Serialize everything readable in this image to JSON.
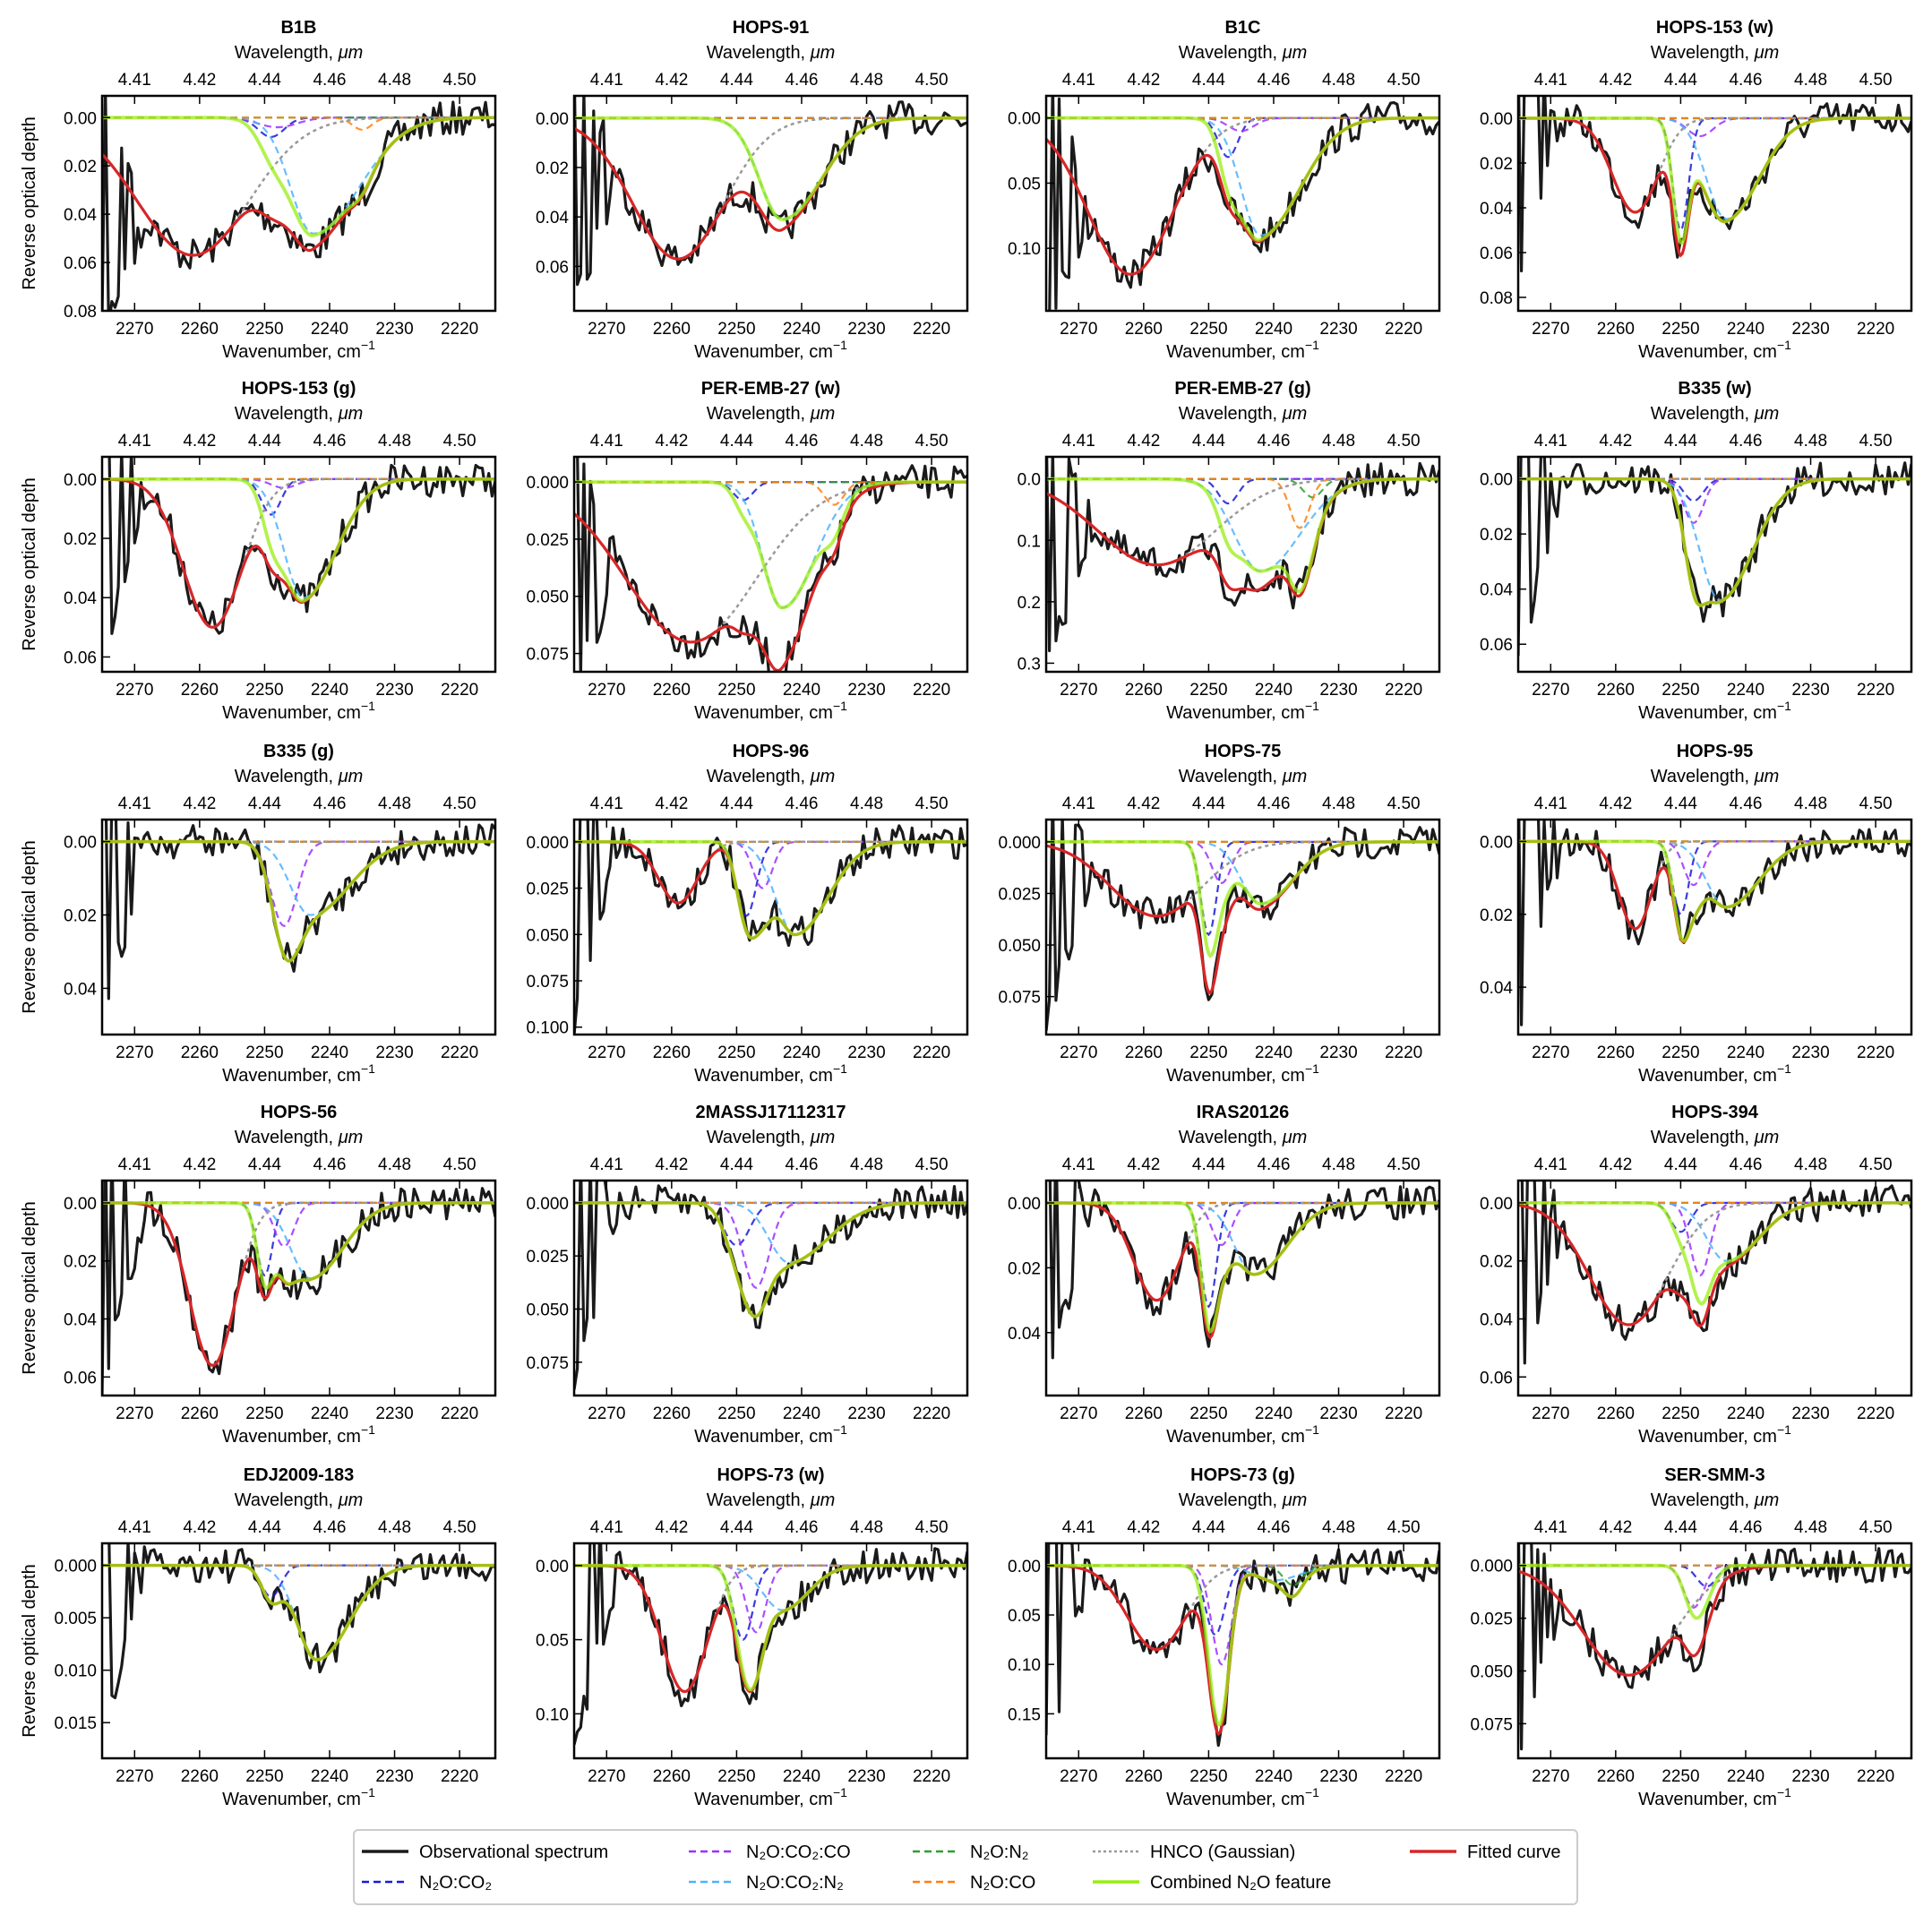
{
  "chart_data": {
    "type": "line",
    "grid": false,
    "xlim": [
      2275,
      2214.5
    ],
    "xticks": [
      "2270",
      "2260",
      "2250",
      "2240",
      "2230",
      "2220"
    ],
    "top_ticks": [
      "4.41",
      "4.42",
      "4.44",
      "4.46",
      "4.48",
      "4.50"
    ],
    "xlabel": "Wavenumber, cm",
    "xlabel_sup": "−1",
    "top_xlabel": "Wavelength, ",
    "top_xlabel_unit": "μm",
    "ylabel": "Reverse optical depth",
    "y_inverted": true,
    "colors": {
      "observed": "#1a1a1a",
      "n2o_co2": "#1a1ad6",
      "n2o_co2_co": "#9b30ff",
      "n2o_n2": "#2ca02c",
      "n2o_co2_n2": "#4db2ff",
      "n2o_co": "#ff7f0e",
      "hnco": "#999999",
      "combined": "#99ee11",
      "fitted": "#d62728"
    },
    "legend": {
      "placement": "bottom-center",
      "entries": [
        {
          "key": "observed",
          "label": "Observational spectrum",
          "style": "solid"
        },
        {
          "key": "n2o_co2_co",
          "label": "N₂O:CO₂:CO",
          "style": "dashed"
        },
        {
          "key": "n2o_n2",
          "label": "N₂O:N₂",
          "style": "dashed"
        },
        {
          "key": "hnco",
          "label": "HNCO (Gaussian)",
          "style": "dotted"
        },
        {
          "key": "fitted",
          "label": "Fitted curve",
          "style": "solid"
        },
        {
          "key": "n2o_co2",
          "label": "N₂O:CO₂",
          "style": "dashed"
        },
        {
          "key": "n2o_co2_n2",
          "label": "N₂O:CO₂:N₂",
          "style": "dashed"
        },
        {
          "key": "n2o_co",
          "label": "N₂O:CO",
          "style": "dashed"
        },
        {
          "key": "combined",
          "label": "Combined N₂O feature",
          "style": "solid"
        }
      ]
    },
    "panels": [
      {
        "title": "B1B",
        "ylim": [
          -0.009,
          0.08
        ],
        "yticks": [
          "0.00",
          "0.02",
          "0.04",
          "0.06",
          "0.08"
        ],
        "hnco": {
          "c": 2261,
          "d": 0.057,
          "s": 8.6
        },
        "components": {
          "n2o_co2": {
            "c": 2249,
            "d": 0.008,
            "s": 2
          },
          "n2o_co2_co": {
            "c": 2248,
            "d": 0.004,
            "s": 3
          },
          "n2o_co2_n2": {
            "c": 2242.5,
            "d": 0.048,
            "sh": 3.5,
            "sl": 7
          },
          "n2o_co": {
            "c": 2235,
            "d": 0.005,
            "s": 1.5
          }
        }
      },
      {
        "title": "HOPS-91",
        "ylim": [
          -0.009,
          0.078
        ],
        "yticks": [
          "0.00",
          "0.02",
          "0.04",
          "0.06"
        ],
        "hnco": {
          "c": 2259,
          "d": 0.057,
          "s": 7
        },
        "components": {
          "n2o_co2_n2": {
            "c": 2243,
            "d": 0.041,
            "sh": 3.5,
            "sl": 6
          }
        }
      },
      {
        "title": "B1C",
        "ylim": [
          -0.017,
          0.148
        ],
        "yticks": [
          "0.00",
          "0.05",
          "0.10"
        ],
        "hnco": {
          "c": 2262,
          "d": 0.12,
          "s": 6.5
        },
        "components": {
          "n2o_co2": {
            "c": 2247,
            "d": 0.03,
            "s": 1.5
          },
          "n2o_co2_co": {
            "c": 2245,
            "d": 0.01,
            "s": 2
          },
          "n2o_co2_n2": {
            "c": 2242,
            "d": 0.09,
            "sh": 3,
            "sl": 6
          }
        }
      },
      {
        "title": "HOPS-153 (w)",
        "ylim": [
          -0.01,
          0.086
        ],
        "yticks": [
          "0.00",
          "0.02",
          "0.04",
          "0.06",
          "0.08"
        ],
        "hnco": {
          "c": 2257,
          "d": 0.042,
          "s": 3.5
        },
        "components": {
          "n2o_co2": {
            "c": 2250,
            "d": 0.05,
            "s": 1.2
          },
          "n2o_co2_co": {
            "c": 2247,
            "d": 0.008,
            "s": 2
          },
          "n2o_co2_n2": {
            "c": 2243,
            "d": 0.045,
            "sh": 3,
            "sl": 5
          }
        }
      },
      {
        "title": "HOPS-153 (g)",
        "ylim": [
          -0.0075,
          0.065
        ],
        "yticks": [
          "0.00",
          "0.02",
          "0.04",
          "0.06"
        ],
        "hnco": {
          "c": 2258,
          "d": 0.05,
          "s": 4.5
        },
        "components": {
          "n2o_co2": {
            "c": 2249,
            "d": 0.012,
            "s": 1.5
          },
          "n2o_co2_co": {
            "c": 2247,
            "d": 0.003,
            "s": 2
          },
          "n2o_co2_n2": {
            "c": 2244,
            "d": 0.04,
            "sh": 3,
            "sl": 5
          }
        }
      },
      {
        "title": "PER-EMB-27 (w)",
        "ylim": [
          -0.011,
          0.083
        ],
        "yticks": [
          "0.000",
          "0.025",
          "0.050",
          "0.075"
        ],
        "hnco": {
          "c": 2257,
          "d": 0.07,
          "s": 10
        },
        "components": {
          "n2o_co2": {
            "c": 2249,
            "d": 0.008,
            "s": 1.5
          },
          "n2o_co2_n2": {
            "c": 2243,
            "d": 0.055,
            "sh": 3,
            "sl": 5
          },
          "n2o_co": {
            "c": 2235,
            "d": 0.01,
            "s": 1.5
          }
        }
      },
      {
        "title": "PER-EMB-27 (g)",
        "ylim": [
          -0.036,
          0.314
        ],
        "yticks": [
          "0.0",
          "0.1",
          "0.2",
          "0.3"
        ],
        "hnco": {
          "c": 2258,
          "d": 0.14,
          "s": 9
        },
        "components": {
          "n2o_co2": {
            "c": 2247,
            "d": 0.04,
            "s": 1.5
          },
          "n2o_n2": {
            "c": 2234,
            "d": 0.03,
            "s": 1.5
          },
          "n2o_co2_n2": {
            "c": 2242,
            "d": 0.15,
            "sh": 4,
            "sl": 6
          },
          "n2o_co": {
            "c": 2236,
            "d": 0.08,
            "s": 1.5
          }
        }
      },
      {
        "title": "B335 (w)",
        "ylim": [
          -0.008,
          0.07
        ],
        "yticks": [
          "0.00",
          "0.02",
          "0.04",
          "0.06"
        ],
        "hnco": {
          "c": 2258,
          "d": 0,
          "s": 4
        },
        "components": {
          "n2o_co2": {
            "c": 2248,
            "d": 0.008,
            "s": 1.5
          },
          "n2o_co2_co": {
            "c": 2248,
            "d": 0.016,
            "s": 1.5
          },
          "n2o_co2_n2": {
            "c": 2244,
            "d": 0.044,
            "sh": 3,
            "sl": 5
          }
        }
      },
      {
        "title": "B335 (g)",
        "ylim": [
          -0.006,
          0.0526
        ],
        "yticks": [
          "0.00",
          "0.02",
          "0.04"
        ],
        "hnco": {
          "c": 2258,
          "d": 0,
          "s": 4
        },
        "components": {
          "n2o_co2_co": {
            "c": 2247,
            "d": 0.023,
            "s": 2
          },
          "n2o_co2_n2": {
            "c": 2243,
            "d": 0.02,
            "sh": 3,
            "sl": 6
          }
        }
      },
      {
        "title": "HOPS-96",
        "ylim": [
          -0.012,
          0.104
        ],
        "yticks": [
          "0.000",
          "0.025",
          "0.050",
          "0.075",
          "0.100"
        ],
        "hnco": {
          "c": 2259,
          "d": 0.033,
          "s": 3
        },
        "components": {
          "n2o_co2": {
            "c": 2248.5,
            "d": 0.04,
            "s": 1.5
          },
          "n2o_co2_co": {
            "c": 2246,
            "d": 0.025,
            "s": 1.5
          },
          "n2o_co2_n2": {
            "c": 2241,
            "d": 0.05,
            "sh": 3,
            "sl": 5
          }
        }
      },
      {
        "title": "HOPS-75",
        "ylim": [
          -0.0108,
          0.0934
        ],
        "yticks": [
          "0.000",
          "0.025",
          "0.050",
          "0.075"
        ],
        "hnco": {
          "c": 2258,
          "d": 0.036,
          "s": 7
        },
        "components": {
          "n2o_co2": {
            "c": 2250,
            "d": 0.045,
            "s": 1.2
          },
          "n2o_co2_co": {
            "c": 2248,
            "d": 0.02,
            "s": 1.5
          },
          "n2o_co2_n2": {
            "c": 2242,
            "d": 0.03,
            "sh": 3,
            "sl": 5
          }
        }
      },
      {
        "title": "HOPS-95",
        "ylim": [
          -0.006,
          0.053
        ],
        "yticks": [
          "0.00",
          "0.02",
          "0.04"
        ],
        "hnco": {
          "c": 2257,
          "d": 0.024,
          "s": 2.5
        },
        "components": {
          "n2o_co2": {
            "c": 2250,
            "d": 0.02,
            "s": 1.2
          },
          "n2o_co2_co": {
            "c": 2248,
            "d": 0.012,
            "s": 1.5
          },
          "n2o_co2_n2": {
            "c": 2243,
            "d": 0.018,
            "sh": 3,
            "sl": 5
          }
        }
      },
      {
        "title": "HOPS-56",
        "ylim": [
          -0.0077,
          0.0664
        ],
        "yticks": [
          "0.00",
          "0.02",
          "0.04",
          "0.06"
        ],
        "hnco": {
          "c": 2258,
          "d": 0.056,
          "s": 3.5
        },
        "components": {
          "n2o_co2": {
            "c": 2250,
            "d": 0.025,
            "s": 1.2
          },
          "n2o_co2_co": {
            "c": 2247,
            "d": 0.015,
            "s": 1.5
          },
          "n2o_co2_n2": {
            "c": 2243,
            "d": 0.026,
            "sh": 3,
            "sl": 5
          }
        }
      },
      {
        "title": "2MASSJ17112317",
        "ylim": [
          -0.0105,
          0.0907
        ],
        "yticks": [
          "0.000",
          "0.025",
          "0.050",
          "0.075"
        ],
        "hnco": {
          "c": 2258,
          "d": 0,
          "s": 4
        },
        "components": {
          "n2o_co2": {
            "c": 2250,
            "d": 0.02,
            "s": 2
          },
          "n2o_co2_co": {
            "c": 2247,
            "d": 0.04,
            "s": 2
          },
          "n2o_co2_n2": {
            "c": 2242,
            "d": 0.028,
            "sh": 3,
            "sl": 6
          }
        }
      },
      {
        "title": "IRAS20126",
        "ylim": [
          -0.0069,
          0.0594
        ],
        "yticks": [
          "0.00",
          "0.02",
          "0.04"
        ],
        "hnco": {
          "c": 2258,
          "d": 0.03,
          "s": 3.5
        },
        "components": {
          "n2o_co2": {
            "c": 2250,
            "d": 0.032,
            "s": 1.2
          },
          "n2o_co2_co": {
            "c": 2248,
            "d": 0.013,
            "s": 1.5
          },
          "n2o_co2_n2": {
            "c": 2243,
            "d": 0.022,
            "sh": 3,
            "sl": 5
          }
        }
      },
      {
        "title": "HOPS-394",
        "ylim": [
          -0.0077,
          0.0664
        ],
        "yticks": [
          "0.00",
          "0.02",
          "0.04",
          "0.06"
        ],
        "hnco": {
          "c": 2258,
          "d": 0.042,
          "s": 6
        },
        "components": {
          "n2o_co2": {
            "c": 2250,
            "d": 0.01,
            "s": 1.5
          },
          "n2o_co2_co": {
            "c": 2247,
            "d": 0.025,
            "s": 1.5
          },
          "n2o_co2_n2": {
            "c": 2243,
            "d": 0.02,
            "sh": 3,
            "sl": 5
          }
        }
      },
      {
        "title": "EDJ2009-183",
        "ylim": [
          -0.0021,
          0.0184
        ],
        "yticks": [
          "0.000",
          "0.005",
          "0.010",
          "0.015"
        ],
        "hnco": {
          "c": 2258,
          "d": 0,
          "s": 4
        },
        "components": {
          "n2o_co2": {
            "c": 2249,
            "d": 0.003,
            "s": 1.5
          },
          "n2o_co2_n2": {
            "c": 2242,
            "d": 0.009,
            "sh": 3,
            "sl": 5
          }
        }
      },
      {
        "title": "HOPS-73 (w)",
        "ylim": [
          -0.015,
          0.13
        ],
        "yticks": [
          "0.00",
          "0.05",
          "0.10"
        ],
        "hnco": {
          "c": 2258,
          "d": 0.085,
          "s": 3.5
        },
        "components": {
          "n2o_co2": {
            "c": 2249,
            "d": 0.05,
            "s": 1.5
          },
          "n2o_co2_co": {
            "c": 2247,
            "d": 0.045,
            "s": 1.5
          },
          "n2o_co2_n2": {
            "c": 2243,
            "d": 0.03,
            "sh": 3,
            "sl": 4
          }
        }
      },
      {
        "title": "HOPS-73 (g)",
        "ylim": [
          -0.0225,
          0.195
        ],
        "yticks": [
          "0.00",
          "0.05",
          "0.10",
          "0.15"
        ],
        "hnco": {
          "c": 2258,
          "d": 0.085,
          "s": 4.5
        },
        "components": {
          "n2o_co2": {
            "c": 2249,
            "d": 0.07,
            "s": 1.5
          },
          "n2o_co2_co": {
            "c": 2248,
            "d": 0.1,
            "s": 1.5
          },
          "n2o_n2": {
            "c": 2237,
            "d": 0.02,
            "s": 1.5
          },
          "n2o_co2_n2": {
            "c": 2240,
            "d": 0.015,
            "sh": 3,
            "sl": 4
          }
        }
      },
      {
        "title": "SER-SMM-3",
        "ylim": [
          -0.0105,
          0.0914
        ],
        "yticks": [
          "0.000",
          "0.025",
          "0.050",
          "0.075"
        ],
        "hnco": {
          "c": 2258,
          "d": 0.052,
          "s": 7
        },
        "components": {
          "n2o_co2": {
            "c": 2246,
            "d": 0.01,
            "s": 1.5
          },
          "n2o_co2_co": {
            "c": 2248,
            "d": 0.02,
            "s": 1.5
          }
        }
      }
    ]
  }
}
